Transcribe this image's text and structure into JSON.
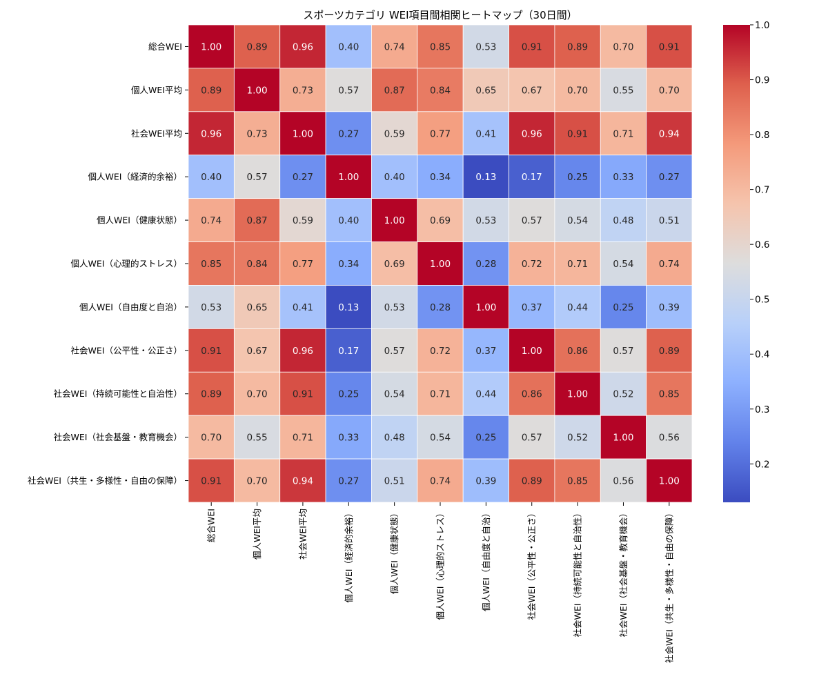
{
  "chart_data": {
    "type": "heatmap",
    "title": "スポーツカテゴリ WEI項目間相関ヒートマップ（30日間）",
    "xlabel": "",
    "ylabel": "",
    "colormap": "coolwarm",
    "vmin": 0.13,
    "vmax": 1.0,
    "value_format": "2 decimals",
    "row_labels": [
      "総合WEI",
      "個人WEI平均",
      "社会WEI平均",
      "個人WEI（経済的余裕）",
      "個人WEI（健康状態）",
      "個人WEI（心理的ストレス）",
      "個人WEI（自由度と自治）",
      "社会WEI（公平性・公正さ）",
      "社会WEI（持続可能性と自治性）",
      "社会WEI（社会基盤・教育機会）",
      "社会WEI（共生・多様性・自由の保障）"
    ],
    "col_labels": [
      "総合WEI",
      "個人WEI平均",
      "社会WEI平均",
      "個人WEI（経済的余裕）",
      "個人WEI（健康状態）",
      "個人WEI（心理的ストレス）",
      "個人WEI（自由度と自治）",
      "社会WEI（公平性・公正さ）",
      "社会WEI（持続可能性と自治性）",
      "社会WEI（社会基盤・教育機会）",
      "社会WEI（共生・多様性・自由の保障）"
    ],
    "values": [
      [
        1.0,
        0.89,
        0.96,
        0.4,
        0.74,
        0.85,
        0.53,
        0.91,
        0.89,
        0.7,
        0.91
      ],
      [
        0.89,
        1.0,
        0.73,
        0.57,
        0.87,
        0.84,
        0.65,
        0.67,
        0.7,
        0.55,
        0.7
      ],
      [
        0.96,
        0.73,
        1.0,
        0.27,
        0.59,
        0.77,
        0.41,
        0.96,
        0.91,
        0.71,
        0.94
      ],
      [
        0.4,
        0.57,
        0.27,
        1.0,
        0.4,
        0.34,
        0.13,
        0.17,
        0.25,
        0.33,
        0.27
      ],
      [
        0.74,
        0.87,
        0.59,
        0.4,
        1.0,
        0.69,
        0.53,
        0.57,
        0.54,
        0.48,
        0.51
      ],
      [
        0.85,
        0.84,
        0.77,
        0.34,
        0.69,
        1.0,
        0.28,
        0.72,
        0.71,
        0.54,
        0.74
      ],
      [
        0.53,
        0.65,
        0.41,
        0.13,
        0.53,
        0.28,
        1.0,
        0.37,
        0.44,
        0.25,
        0.39
      ],
      [
        0.91,
        0.67,
        0.96,
        0.17,
        0.57,
        0.72,
        0.37,
        1.0,
        0.86,
        0.57,
        0.89
      ],
      [
        0.89,
        0.7,
        0.91,
        0.25,
        0.54,
        0.71,
        0.44,
        0.86,
        1.0,
        0.52,
        0.85
      ],
      [
        0.7,
        0.55,
        0.71,
        0.33,
        0.48,
        0.54,
        0.25,
        0.57,
        0.52,
        1.0,
        0.56
      ],
      [
        0.91,
        0.7,
        0.94,
        0.27,
        0.51,
        0.74,
        0.39,
        0.89,
        0.85,
        0.56,
        1.0
      ]
    ],
    "colorbar": {
      "ticks": [
        0.2,
        0.3,
        0.4,
        0.5,
        0.6,
        0.7,
        0.8,
        0.9,
        1.0
      ],
      "tick_labels": [
        "0.2",
        "0.3",
        "0.4",
        "0.5",
        "0.6",
        "0.7",
        "0.8",
        "0.9",
        "1.0"
      ]
    }
  }
}
